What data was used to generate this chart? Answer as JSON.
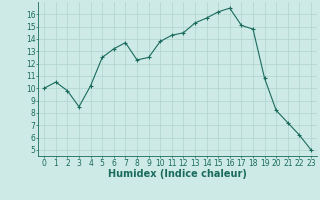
{
  "x": [
    0,
    1,
    2,
    3,
    4,
    5,
    6,
    7,
    8,
    9,
    10,
    11,
    12,
    13,
    14,
    15,
    16,
    17,
    18,
    19,
    20,
    21,
    22,
    23
  ],
  "y": [
    10.0,
    10.5,
    9.8,
    8.5,
    10.2,
    12.5,
    13.2,
    13.7,
    12.3,
    12.5,
    13.8,
    14.3,
    14.5,
    15.3,
    15.7,
    16.2,
    16.5,
    15.1,
    14.8,
    10.8,
    8.2,
    7.2,
    6.2,
    5.0
  ],
  "line_color": "#1a6b5e",
  "marker": "+",
  "marker_size": 3,
  "marker_linewidth": 0.8,
  "bg_color": "#ceeae6",
  "grid_color": "#afd4cf",
  "xlabel": "Humidex (Indice chaleur)",
  "ylim": [
    4.5,
    17
  ],
  "xlim": [
    -0.5,
    23.5
  ],
  "yticks": [
    5,
    6,
    7,
    8,
    9,
    10,
    11,
    12,
    13,
    14,
    15,
    16
  ],
  "xticks": [
    0,
    1,
    2,
    3,
    4,
    5,
    6,
    7,
    8,
    9,
    10,
    11,
    12,
    13,
    14,
    15,
    16,
    17,
    18,
    19,
    20,
    21,
    22,
    23
  ],
  "tick_fontsize": 5.5,
  "xlabel_fontsize": 7,
  "linewidth": 0.8
}
